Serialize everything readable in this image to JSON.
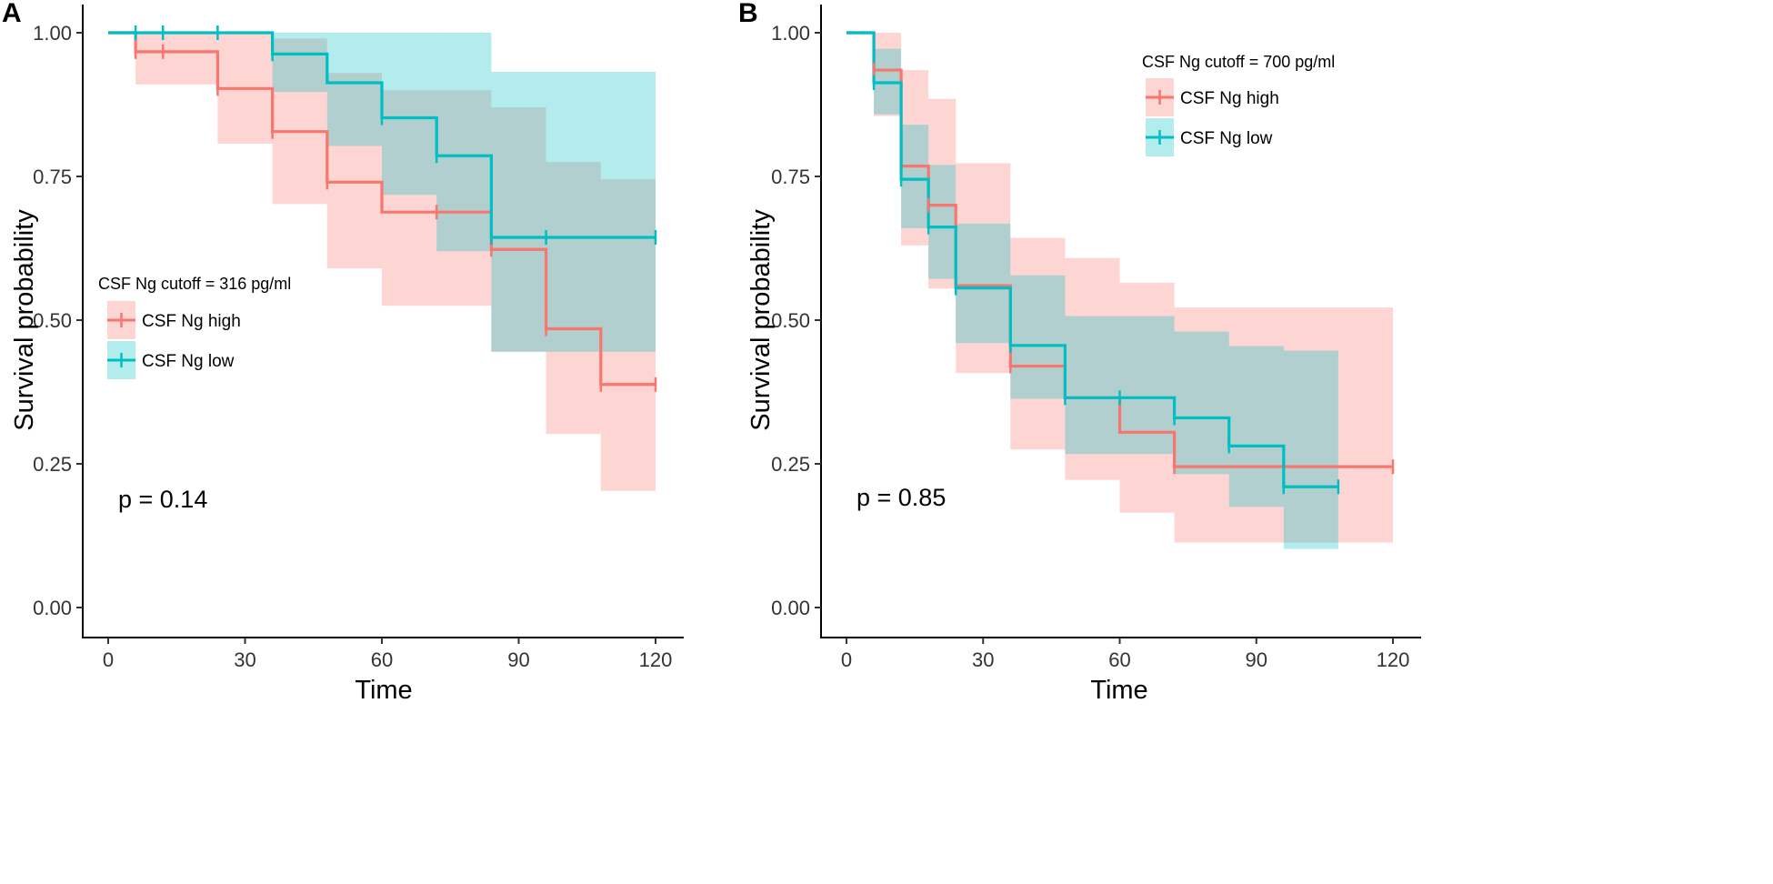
{
  "chart_data": [
    {
      "type": "line",
      "subtype": "kaplan-meier",
      "panel_label": "A",
      "xlabel": "Time",
      "ylabel": "Survival probability",
      "xlim": [
        0,
        120
      ],
      "ylim": [
        0,
        1
      ],
      "x_ticks": [
        0,
        30,
        60,
        90,
        120
      ],
      "y_ticks": [
        0,
        0.25,
        0.5,
        0.75,
        1
      ],
      "x_tick_labels": [
        "0",
        "30",
        "60",
        "90",
        "120"
      ],
      "y_tick_labels": [
        "0.00",
        "0.25",
        "0.50",
        "0.75",
        "1.00"
      ],
      "legend_title": "CSF Ng cutoff = 316 pg/ml",
      "legend_position": "middle-left",
      "pvalue_text": "p = 0.14",
      "series": [
        {
          "name": "CSF Ng high",
          "color": "#F8766D",
          "band_color": "#F8766D",
          "steps": [
            {
              "t": 0,
              "s": 1.0,
              "lower": 1.0,
              "upper": 1.0
            },
            {
              "t": 6,
              "s": 0.967,
              "lower": 0.91,
              "upper": 1.0
            },
            {
              "t": 24,
              "s": 0.903,
              "lower": 0.807,
              "upper": 1.0
            },
            {
              "t": 36,
              "s": 0.828,
              "lower": 0.702,
              "upper": 0.99
            },
            {
              "t": 48,
              "s": 0.74,
              "lower": 0.59,
              "upper": 0.93
            },
            {
              "t": 60,
              "s": 0.688,
              "lower": 0.525,
              "upper": 0.9
            },
            {
              "t": 84,
              "s": 0.623,
              "lower": 0.445,
              "upper": 0.87
            },
            {
              "t": 96,
              "s": 0.485,
              "lower": 0.302,
              "upper": 0.775
            },
            {
              "t": 108,
              "s": 0.388,
              "lower": 0.203,
              "upper": 0.745
            }
          ],
          "end_time": 120,
          "censor_times": [
            6,
            12,
            24,
            36,
            48,
            72,
            84,
            96,
            108,
            120
          ]
        },
        {
          "name": "CSF Ng low",
          "color": "#00BFC4",
          "band_color": "#00BFC4",
          "steps": [
            {
              "t": 0,
              "s": 1.0,
              "lower": 1.0,
              "upper": 1.0
            },
            {
              "t": 36,
              "s": 0.963,
              "lower": 0.897,
              "upper": 1.0
            },
            {
              "t": 48,
              "s": 0.913,
              "lower": 0.803,
              "upper": 1.0
            },
            {
              "t": 60,
              "s": 0.852,
              "lower": 0.718,
              "upper": 1.0
            },
            {
              "t": 72,
              "s": 0.786,
              "lower": 0.62,
              "upper": 1.0
            },
            {
              "t": 84,
              "s": 0.644,
              "lower": 0.445,
              "upper": 0.932
            }
          ],
          "end_time": 120,
          "censor_times": [
            6,
            12,
            24,
            36,
            60,
            72,
            84,
            96,
            120
          ]
        }
      ]
    },
    {
      "type": "line",
      "subtype": "kaplan-meier",
      "panel_label": "B",
      "xlabel": "Time",
      "ylabel": "Survival probability",
      "xlim": [
        0,
        120
      ],
      "ylim": [
        0,
        1
      ],
      "x_ticks": [
        0,
        30,
        60,
        90,
        120
      ],
      "y_ticks": [
        0,
        0.25,
        0.5,
        0.75,
        1
      ],
      "x_tick_labels": [
        "0",
        "30",
        "60",
        "90",
        "120"
      ],
      "y_tick_labels": [
        "0.00",
        "0.25",
        "0.50",
        "0.75",
        "1.00"
      ],
      "legend_title": "CSF Ng cutoff = 700 pg/ml",
      "legend_position": "top-right",
      "pvalue_text": "p = 0.85",
      "series": [
        {
          "name": "CSF Ng high",
          "color": "#F8766D",
          "band_color": "#F8766D",
          "steps": [
            {
              "t": 0,
              "s": 1.0,
              "lower": 1.0,
              "upper": 1.0
            },
            {
              "t": 6,
              "s": 0.935,
              "lower": 0.855,
              "upper": 1.0
            },
            {
              "t": 12,
              "s": 0.768,
              "lower": 0.63,
              "upper": 0.935
            },
            {
              "t": 18,
              "s": 0.7,
              "lower": 0.555,
              "upper": 0.885
            },
            {
              "t": 24,
              "s": 0.56,
              "lower": 0.408,
              "upper": 0.773
            },
            {
              "t": 36,
              "s": 0.42,
              "lower": 0.275,
              "upper": 0.643
            },
            {
              "t": 48,
              "s": 0.365,
              "lower": 0.222,
              "upper": 0.608
            },
            {
              "t": 60,
              "s": 0.305,
              "lower": 0.165,
              "upper": 0.565
            },
            {
              "t": 72,
              "s": 0.245,
              "lower": 0.113,
              "upper": 0.522
            }
          ],
          "end_time": 120,
          "censor_times": [
            6,
            18,
            36,
            72,
            120
          ]
        },
        {
          "name": "CSF Ng low",
          "color": "#00BFC4",
          "band_color": "#00BFC4",
          "steps": [
            {
              "t": 0,
              "s": 1.0,
              "lower": 1.0,
              "upper": 1.0
            },
            {
              "t": 6,
              "s": 0.913,
              "lower": 0.858,
              "upper": 0.972
            },
            {
              "t": 12,
              "s": 0.745,
              "lower": 0.66,
              "upper": 0.84
            },
            {
              "t": 18,
              "s": 0.662,
              "lower": 0.572,
              "upper": 0.77
            },
            {
              "t": 24,
              "s": 0.556,
              "lower": 0.46,
              "upper": 0.668
            },
            {
              "t": 36,
              "s": 0.456,
              "lower": 0.363,
              "upper": 0.578
            },
            {
              "t": 48,
              "s": 0.365,
              "lower": 0.267,
              "upper": 0.507
            },
            {
              "t": 72,
              "s": 0.33,
              "lower": 0.232,
              "upper": 0.48
            },
            {
              "t": 84,
              "s": 0.281,
              "lower": 0.175,
              "upper": 0.455
            },
            {
              "t": 96,
              "s": 0.21,
              "lower": 0.102,
              "upper": 0.447
            }
          ],
          "end_time": 108,
          "censor_times": [
            6,
            12,
            18,
            24,
            36,
            48,
            60,
            72,
            84,
            96,
            108
          ]
        }
      ]
    }
  ]
}
